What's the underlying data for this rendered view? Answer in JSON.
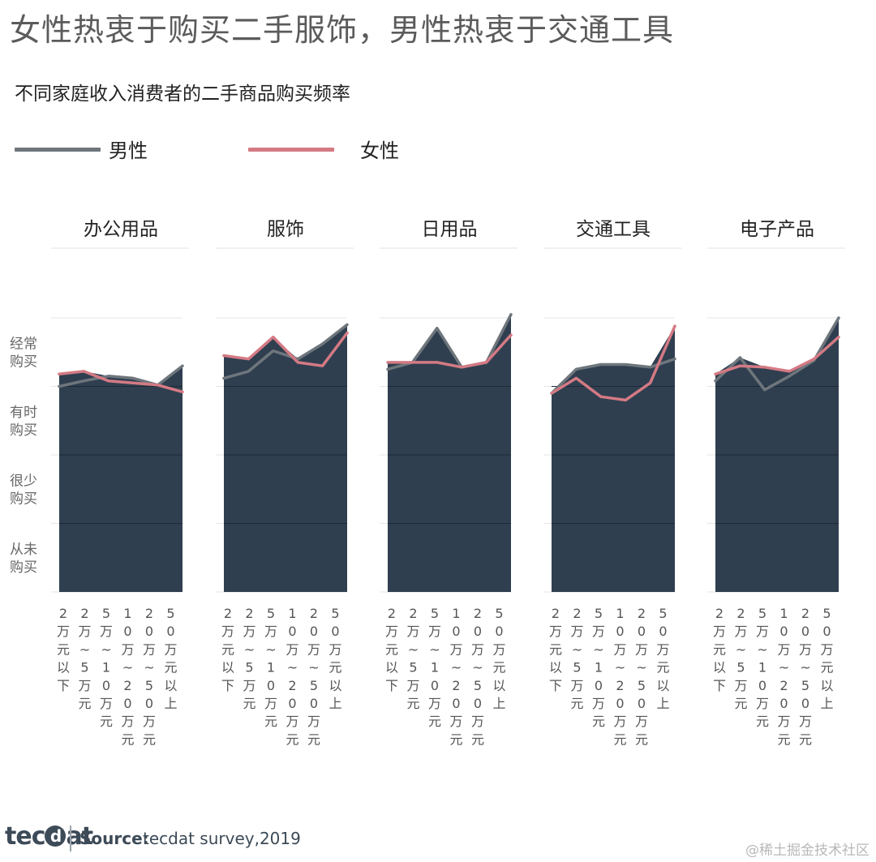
{
  "title": "女性热衷于购买二手服饰，男性热衷于交通工具",
  "subtitle": "不同家庭收入消费者的二手商品购买频率",
  "legend": [
    {
      "label": "男性",
      "color": "#6e767c"
    },
    {
      "label": "女性",
      "color": "#d47a84"
    }
  ],
  "source": {
    "label": "Source:",
    "text": "tecdat survey,2019"
  },
  "logo": {
    "pre": "tec",
    "o": "d",
    "post": "at"
  },
  "watermark": "@稀土掘金技术社区",
  "colors": {
    "fill": "#2f3f50",
    "male": "#6e767c",
    "female": "#d47a84",
    "grid": "#1e2a36"
  },
  "chart_data": {
    "type": "line",
    "y_categories": [
      "从未购买",
      "很少购买",
      "有时购买",
      "经常购买"
    ],
    "y_tick_labels": [
      {
        "line1": "从未",
        "line2": "购买"
      },
      {
        "line1": "很少",
        "line2": "购买"
      },
      {
        "line1": "有时",
        "line2": "购买"
      },
      {
        "line1": "经常",
        "line2": "购买"
      }
    ],
    "ylim": [
      0,
      4
    ],
    "x_categories": [
      "2万元以下",
      "2万~5万元",
      "5万~10万元",
      "10万~20万元",
      "20万~50万元",
      "50万元以上"
    ],
    "panels": [
      {
        "title": "办公用品",
        "series": [
          {
            "name": "男性",
            "values": [
              3.0,
              3.08,
              3.15,
              3.12,
              3.02,
              3.3
            ]
          },
          {
            "name": "女性",
            "values": [
              3.18,
              3.22,
              3.08,
              3.05,
              3.02,
              2.92
            ]
          }
        ]
      },
      {
        "title": "服饰",
        "series": [
          {
            "name": "男性",
            "values": [
              3.12,
              3.22,
              3.52,
              3.4,
              3.62,
              3.9
            ]
          },
          {
            "name": "女性",
            "values": [
              3.45,
              3.4,
              3.72,
              3.35,
              3.3,
              3.78
            ]
          }
        ]
      },
      {
        "title": "日用品",
        "series": [
          {
            "name": "男性",
            "values": [
              3.25,
              3.35,
              3.85,
              3.28,
              3.35,
              4.05
            ]
          },
          {
            "name": "女性",
            "values": [
              3.35,
              3.35,
              3.35,
              3.28,
              3.35,
              3.75
            ]
          }
        ]
      },
      {
        "title": "交通工具",
        "series": [
          {
            "name": "男性",
            "values": [
              2.9,
              3.25,
              3.32,
              3.32,
              3.28,
              3.4
            ]
          },
          {
            "name": "女性",
            "values": [
              2.9,
              3.12,
              2.85,
              2.8,
              3.05,
              3.88
            ]
          }
        ]
      },
      {
        "title": "电子产品",
        "series": [
          {
            "name": "男性",
            "values": [
              3.08,
              3.42,
              2.95,
              3.15,
              3.38,
              4.0
            ]
          },
          {
            "name": "女性",
            "values": [
              3.18,
              3.3,
              3.28,
              3.22,
              3.4,
              3.72
            ]
          }
        ]
      }
    ]
  }
}
